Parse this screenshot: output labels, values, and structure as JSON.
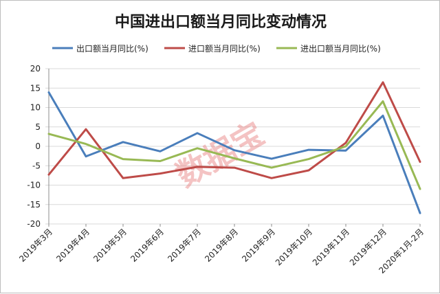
{
  "chart_data": {
    "type": "line",
    "title": "中国进出口额当月同比变动情况",
    "watermark": "数据宝",
    "categories": [
      "2019年3月",
      "2019年4月",
      "2019年5月",
      "2019年6月",
      "2019年7月",
      "2019年8月",
      "2019年9月",
      "2019年10月",
      "2019年11月",
      "2019年12月",
      "2020年1月-2月"
    ],
    "series": [
      {
        "name": "出口额当月同比(%)",
        "color": "#4a7ebb",
        "values": [
          13.9,
          -2.6,
          1.1,
          -1.3,
          3.4,
          -1.0,
          -3.2,
          -0.9,
          -1.1,
          7.9,
          -17.2
        ]
      },
      {
        "name": "进口额当月同比(%)",
        "color": "#be4b48",
        "values": [
          -7.3,
          4.4,
          -8.2,
          -7.0,
          -5.3,
          -5.5,
          -8.2,
          -6.2,
          0.9,
          16.5,
          -4.0
        ]
      },
      {
        "name": "进出口额当月同比(%)",
        "color": "#98b954",
        "values": [
          3.2,
          0.6,
          -3.3,
          -3.8,
          -0.5,
          -3.1,
          -5.5,
          -3.3,
          0.0,
          11.6,
          -11.0
        ]
      }
    ],
    "ylim": [
      -20,
      20
    ],
    "yticks": [
      20,
      15,
      10,
      5,
      0,
      -5,
      -10,
      -15,
      -20
    ],
    "grid": true,
    "legend_position": "top"
  }
}
